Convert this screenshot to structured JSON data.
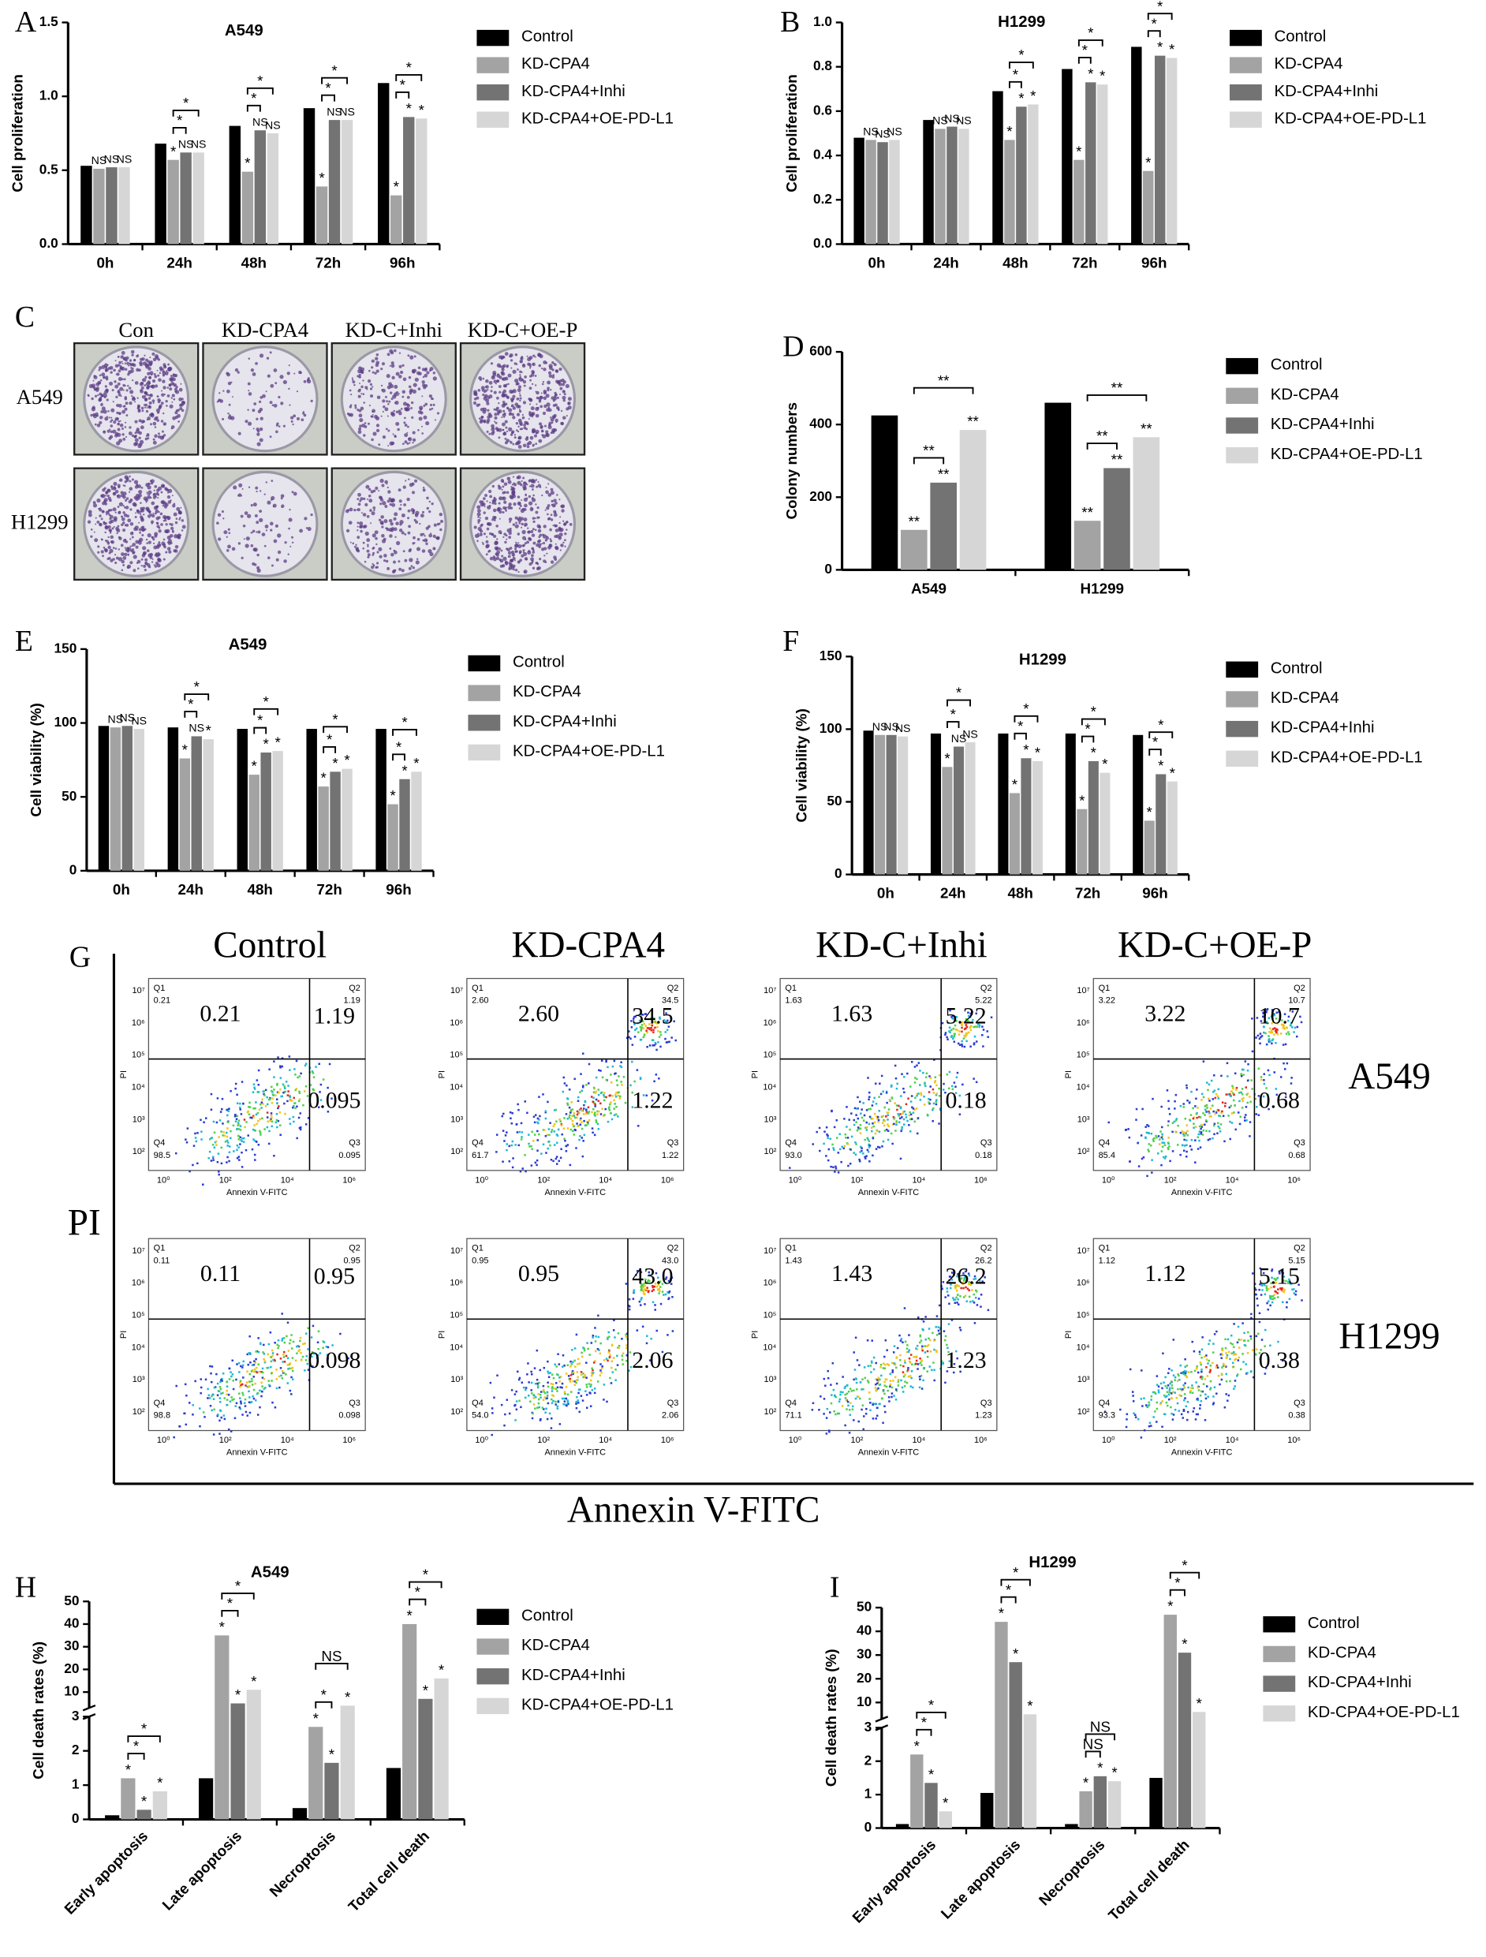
{
  "chart_data": [
    {
      "panel": "A",
      "type": "bar",
      "title": "A549",
      "ylabel": "Cell proliferation",
      "categories": [
        "0h",
        "24h",
        "48h",
        "72h",
        "96h"
      ],
      "series": [
        {
          "name": "Control",
          "color": "#000000",
          "values": [
            0.53,
            0.68,
            0.8,
            0.92,
            1.09
          ]
        },
        {
          "name": "KD-CPA4",
          "color": "#a3a3a3",
          "values": [
            0.51,
            0.57,
            0.49,
            0.39,
            0.33
          ],
          "marks": [
            "NS",
            "*",
            "*",
            "*",
            "*"
          ]
        },
        {
          "name": "KD-CPA4+Inhi",
          "color": "#737373",
          "values": [
            0.52,
            0.62,
            0.77,
            0.84,
            0.86
          ],
          "marks": [
            "NS",
            "NS",
            "NS",
            "NS",
            "*"
          ]
        },
        {
          "name": "KD-CPA4+OE-PD-L1",
          "color": "#d6d6d6",
          "values": [
            0.52,
            0.62,
            0.75,
            0.84,
            0.85
          ],
          "marks": [
            "NS",
            "NS",
            "NS",
            "NS",
            "*"
          ]
        }
      ],
      "ylim": [
        0,
        1.5
      ],
      "yticks": [
        {
          "value": 0,
          "label": "0.0"
        },
        0.5,
        {
          "value": 1,
          "label": "1.0"
        },
        1.5
      ],
      "brackets": [
        {
          "category": 1,
          "series": [
            1,
            2
          ],
          "label": "*"
        },
        {
          "category": 1,
          "series": [
            1,
            3
          ],
          "label": "*"
        },
        {
          "category": 2,
          "series": [
            1,
            2
          ],
          "label": "*"
        },
        {
          "category": 2,
          "series": [
            1,
            3
          ],
          "label": "*"
        },
        {
          "category": 3,
          "series": [
            1,
            2
          ],
          "label": "*"
        },
        {
          "category": 3,
          "series": [
            1,
            3
          ],
          "label": "*"
        },
        {
          "category": 4,
          "series": [
            1,
            2
          ],
          "label": "*"
        },
        {
          "category": 4,
          "series": [
            1,
            3
          ],
          "label": "*"
        }
      ]
    },
    {
      "panel": "B",
      "type": "bar",
      "title": "H1299",
      "ylabel": "Cell proliferation",
      "categories": [
        "0h",
        "24h",
        "48h",
        "72h",
        "96h"
      ],
      "series": [
        {
          "name": "Control",
          "color": "#000000",
          "values": [
            0.48,
            0.56,
            0.69,
            0.79,
            0.89
          ]
        },
        {
          "name": "KD-CPA4",
          "color": "#a3a3a3",
          "values": [
            0.47,
            0.52,
            0.47,
            0.38,
            0.33
          ],
          "marks": [
            "NS",
            "NS",
            "*",
            "*",
            "*"
          ]
        },
        {
          "name": "KD-CPA4+Inhi",
          "color": "#737373",
          "values": [
            0.46,
            0.53,
            0.62,
            0.73,
            0.85
          ],
          "marks": [
            "NS",
            "NS",
            "*",
            "*",
            "*"
          ]
        },
        {
          "name": "KD-CPA4+OE-PD-L1",
          "color": "#d6d6d6",
          "values": [
            0.47,
            0.52,
            0.63,
            0.72,
            0.84
          ],
          "marks": [
            "NS",
            "NS",
            "*",
            "*",
            "*"
          ]
        }
      ],
      "ylim": [
        0,
        1
      ],
      "yticks": [
        {
          "value": 0,
          "label": "0.0"
        },
        0.2,
        0.4,
        0.6,
        0.8,
        {
          "value": 1,
          "label": "1.0"
        }
      ],
      "brackets": [
        {
          "category": 2,
          "series": [
            1,
            2
          ],
          "label": "*"
        },
        {
          "category": 2,
          "series": [
            1,
            3
          ],
          "label": "*"
        },
        {
          "category": 3,
          "series": [
            1,
            2
          ],
          "label": "*"
        },
        {
          "category": 3,
          "series": [
            1,
            3
          ],
          "label": "*"
        },
        {
          "category": 4,
          "series": [
            1,
            2
          ],
          "label": "*"
        },
        {
          "category": 4,
          "series": [
            1,
            3
          ],
          "label": "*"
        }
      ]
    },
    {
      "panel": "D",
      "type": "bar",
      "ylabel": "Colony numbers",
      "categories": [
        "A549",
        "H1299"
      ],
      "series": [
        {
          "name": "Control",
          "color": "#000000",
          "values": [
            425,
            460
          ]
        },
        {
          "name": "KD-CPA4",
          "color": "#a3a3a3",
          "values": [
            110,
            135
          ],
          "marks": [
            "**",
            "**"
          ]
        },
        {
          "name": "KD-CPA4+Inhi",
          "color": "#737373",
          "values": [
            240,
            280
          ],
          "marks": [
            "**",
            "**"
          ]
        },
        {
          "name": "KD-CPA4+OE-PD-L1",
          "color": "#d6d6d6",
          "values": [
            385,
            365
          ],
          "marks": [
            "**",
            "**"
          ]
        }
      ],
      "ylim": [
        0,
        600
      ],
      "yticks": [
        0,
        200,
        400,
        600
      ],
      "brackets": [
        {
          "category": 0,
          "series": [
            1,
            2
          ],
          "label": "**"
        },
        {
          "category": 0,
          "series": [
            1,
            3
          ],
          "label": "**"
        },
        {
          "category": 1,
          "series": [
            1,
            2
          ],
          "label": "**"
        },
        {
          "category": 1,
          "series": [
            1,
            3
          ],
          "label": "**"
        }
      ]
    },
    {
      "panel": "E",
      "type": "bar",
      "title": "A549",
      "ylabel": "Cell viability (%)",
      "categories": [
        "0h",
        "24h",
        "48h",
        "72h",
        "96h"
      ],
      "series": [
        {
          "name": "Control",
          "color": "#000000",
          "values": [
            98,
            97,
            96,
            96,
            96
          ]
        },
        {
          "name": "KD-CPA4",
          "color": "#a3a3a3",
          "values": [
            97,
            76,
            65,
            57,
            45
          ],
          "marks": [
            "NS",
            "*",
            "*",
            "*",
            "*"
          ]
        },
        {
          "name": "KD-CPA4+Inhi",
          "color": "#737373",
          "values": [
            98,
            91,
            80,
            67,
            62
          ],
          "marks": [
            "NS",
            "NS",
            "*",
            "*",
            "*"
          ]
        },
        {
          "name": "KD-CPA4+OE-PD-L1",
          "color": "#d6d6d6",
          "values": [
            96,
            89,
            81,
            69,
            67
          ],
          "marks": [
            "NS",
            "*",
            "*",
            "*",
            "*"
          ]
        }
      ],
      "ylim": [
        0,
        150
      ],
      "yticks": [
        0,
        50,
        100,
        150
      ],
      "brackets": [
        {
          "category": 1,
          "series": [
            1,
            2
          ],
          "label": "*"
        },
        {
          "category": 1,
          "series": [
            1,
            3
          ],
          "label": "*"
        },
        {
          "category": 2,
          "series": [
            1,
            2
          ],
          "label": "*"
        },
        {
          "category": 2,
          "series": [
            1,
            3
          ],
          "label": "*"
        },
        {
          "category": 3,
          "series": [
            1,
            2
          ],
          "label": "*"
        },
        {
          "category": 3,
          "series": [
            1,
            3
          ],
          "label": "*"
        },
        {
          "category": 4,
          "series": [
            1,
            2
          ],
          "label": "*"
        },
        {
          "category": 4,
          "series": [
            1,
            3
          ],
          "label": "*"
        }
      ]
    },
    {
      "panel": "F",
      "type": "bar",
      "title": "H1299",
      "ylabel": "Cell viability (%)",
      "categories": [
        "0h",
        "24h",
        "48h",
        "72h",
        "96h"
      ],
      "series": [
        {
          "name": "Control",
          "color": "#000000",
          "values": [
            99,
            97,
            97,
            97,
            96
          ]
        },
        {
          "name": "KD-CPA4",
          "color": "#a3a3a3",
          "values": [
            96,
            74,
            56,
            45,
            37
          ],
          "marks": [
            "NS",
            "*",
            "*",
            "*",
            "*"
          ]
        },
        {
          "name": "KD-CPA4+Inhi",
          "color": "#737373",
          "values": [
            96,
            88,
            80,
            78,
            69
          ],
          "marks": [
            "NS",
            "NS",
            "*",
            "*",
            "*"
          ]
        },
        {
          "name": "KD-CPA4+OE-PD-L1",
          "color": "#d6d6d6",
          "values": [
            95,
            91,
            78,
            70,
            64
          ],
          "marks": [
            "NS",
            "NS",
            "*",
            "*",
            "*"
          ]
        }
      ],
      "ylim": [
        0,
        150
      ],
      "yticks": [
        0,
        50,
        100,
        150
      ],
      "brackets": [
        {
          "category": 1,
          "series": [
            1,
            2
          ],
          "label": "*"
        },
        {
          "category": 1,
          "series": [
            1,
            3
          ],
          "label": "*"
        },
        {
          "category": 2,
          "series": [
            1,
            2
          ],
          "label": "*"
        },
        {
          "category": 2,
          "series": [
            1,
            3
          ],
          "label": "*"
        },
        {
          "category": 3,
          "series": [
            1,
            2
          ],
          "label": "*"
        },
        {
          "category": 3,
          "series": [
            1,
            3
          ],
          "label": "*"
        },
        {
          "category": 4,
          "series": [
            1,
            2
          ],
          "label": "*"
        },
        {
          "category": 4,
          "series": [
            1,
            3
          ],
          "label": "*"
        }
      ]
    },
    {
      "panel": "H",
      "type": "bar",
      "title": "A549",
      "ylabel": "Cell death rates (%)",
      "categories": [
        "Early apoptosis",
        "Late apoptosis",
        "Necroptosis",
        "Total cell death"
      ],
      "series": [
        {
          "name": "Control",
          "color": "#000000",
          "values": [
            0.12,
            1.2,
            0.33,
            1.5
          ]
        },
        {
          "name": "KD-CPA4",
          "color": "#a3a3a3",
          "values": [
            1.2,
            35,
            2.7,
            40
          ],
          "marks": [
            "*",
            "*",
            "*",
            "*"
          ]
        },
        {
          "name": "KD-CPA4+Inhi",
          "color": "#737373",
          "values": [
            0.28,
            5,
            1.65,
            7
          ],
          "marks": [
            "*",
            "*",
            "*",
            "*"
          ]
        },
        {
          "name": "KD-CPA4+OE-PD-L1",
          "color": "#d6d6d6",
          "values": [
            0.82,
            11,
            4,
            16
          ],
          "marks": [
            "*",
            "*",
            "*",
            "*"
          ]
        }
      ],
      "ylim": [
        0,
        50
      ],
      "ybreak": 3,
      "yticks": [
        0,
        1,
        2,
        3,
        10,
        20,
        30,
        40,
        50
      ],
      "brackets": [
        {
          "category": 0,
          "series": [
            1,
            2
          ],
          "label": "*"
        },
        {
          "category": 0,
          "series": [
            1,
            3
          ],
          "label": "*"
        },
        {
          "category": 1,
          "series": [
            1,
            2
          ],
          "label": "*"
        },
        {
          "category": 1,
          "series": [
            1,
            3
          ],
          "label": "*"
        },
        {
          "category": 2,
          "series": [
            1,
            2
          ],
          "label": "*"
        },
        {
          "category": 2,
          "series": [
            1,
            3
          ],
          "label": "NS"
        },
        {
          "category": 3,
          "series": [
            1,
            2
          ],
          "label": "*"
        },
        {
          "category": 3,
          "series": [
            1,
            3
          ],
          "label": "*"
        }
      ]
    },
    {
      "panel": "I",
      "type": "bar",
      "title": "H1299",
      "ylabel": "Cell death rates (%)",
      "categories": [
        "Early apoptosis",
        "Late apoptosis",
        "Necroptosis",
        "Total cell death"
      ],
      "series": [
        {
          "name": "Control",
          "color": "#000000",
          "values": [
            0.12,
            1.05,
            0.12,
            1.5
          ]
        },
        {
          "name": "KD-CPA4",
          "color": "#a3a3a3",
          "values": [
            2.2,
            44,
            1.1,
            47
          ],
          "marks": [
            "*",
            "*",
            "*",
            "*"
          ]
        },
        {
          "name": "KD-CPA4+Inhi",
          "color": "#737373",
          "values": [
            1.35,
            27,
            1.55,
            31
          ],
          "marks": [
            "*",
            "*",
            "*",
            "*"
          ]
        },
        {
          "name": "KD-CPA4+OE-PD-L1",
          "color": "#d6d6d6",
          "values": [
            0.5,
            5,
            1.4,
            6
          ],
          "marks": [
            "*",
            "*",
            "*",
            "*"
          ]
        }
      ],
      "ylim": [
        0,
        50
      ],
      "ybreak": 3,
      "yticks": [
        0,
        1,
        2,
        3,
        10,
        20,
        30,
        40,
        50
      ],
      "brackets": [
        {
          "category": 0,
          "series": [
            1,
            2
          ],
          "label": "*"
        },
        {
          "category": 0,
          "series": [
            1,
            3
          ],
          "label": "*"
        },
        {
          "category": 1,
          "series": [
            1,
            2
          ],
          "label": "*"
        },
        {
          "category": 1,
          "series": [
            1,
            3
          ],
          "label": "*"
        },
        {
          "category": 2,
          "series": [
            1,
            2
          ],
          "label": "NS"
        },
        {
          "category": 2,
          "series": [
            1,
            3
          ],
          "label": "NS"
        },
        {
          "category": 3,
          "series": [
            1,
            2
          ],
          "label": "*"
        },
        {
          "category": 3,
          "series": [
            1,
            3
          ],
          "label": "*"
        }
      ]
    }
  ],
  "colony": {
    "panel": "C",
    "columns": [
      "Con",
      "KD-CPA4",
      "KD-C+Inhi",
      "KD-C+OE-P"
    ],
    "rows": [
      "A549",
      "H1299"
    ]
  },
  "flow": {
    "panel": "G",
    "columns": [
      "Control",
      "KD-CPA4",
      "KD-C+Inhi",
      "KD-C+OE-P"
    ],
    "rows": [
      "A549",
      "H1299"
    ],
    "y_title": "PI",
    "x_title": "Annexin V-FITC",
    "plot_ylabel": "PI",
    "plot_xlabel": "Annexin V-FITC",
    "quadrants": [
      "Q1",
      "Q2",
      "Q3",
      "Q4"
    ],
    "xticks": [
      "10⁰",
      "10²",
      "10⁴",
      "10⁶"
    ],
    "yticks": [
      "10²",
      "10³",
      "10⁴",
      "10⁵",
      "10⁶",
      "10⁷"
    ],
    "plots": [
      [
        {
          "Q1": "0.21",
          "Q2": "1.19",
          "Q3": "0.095",
          "Q4": "98.5"
        },
        {
          "Q1": "2.60",
          "Q2": "34.5",
          "Q3": "1.22",
          "Q4": "61.7"
        },
        {
          "Q1": "1.63",
          "Q2": "5.22",
          "Q3": "0.18",
          "Q4": "93.0"
        },
        {
          "Q1": "3.22",
          "Q2": "10.7",
          "Q3": "0.68",
          "Q4": "85.4"
        }
      ],
      [
        {
          "Q1": "0.11",
          "Q2": "0.95",
          "Q3": "0.098",
          "Q4": "98.8"
        },
        {
          "Q1": "0.95",
          "Q2": "43.0",
          "Q3": "2.06",
          "Q4": "54.0"
        },
        {
          "Q1": "1.43",
          "Q2": "26.2",
          "Q3": "1.23",
          "Q4": "71.1"
        },
        {
          "Q1": "1.12",
          "Q2": "5.15",
          "Q3": "0.38",
          "Q4": "93.3"
        }
      ]
    ]
  }
}
